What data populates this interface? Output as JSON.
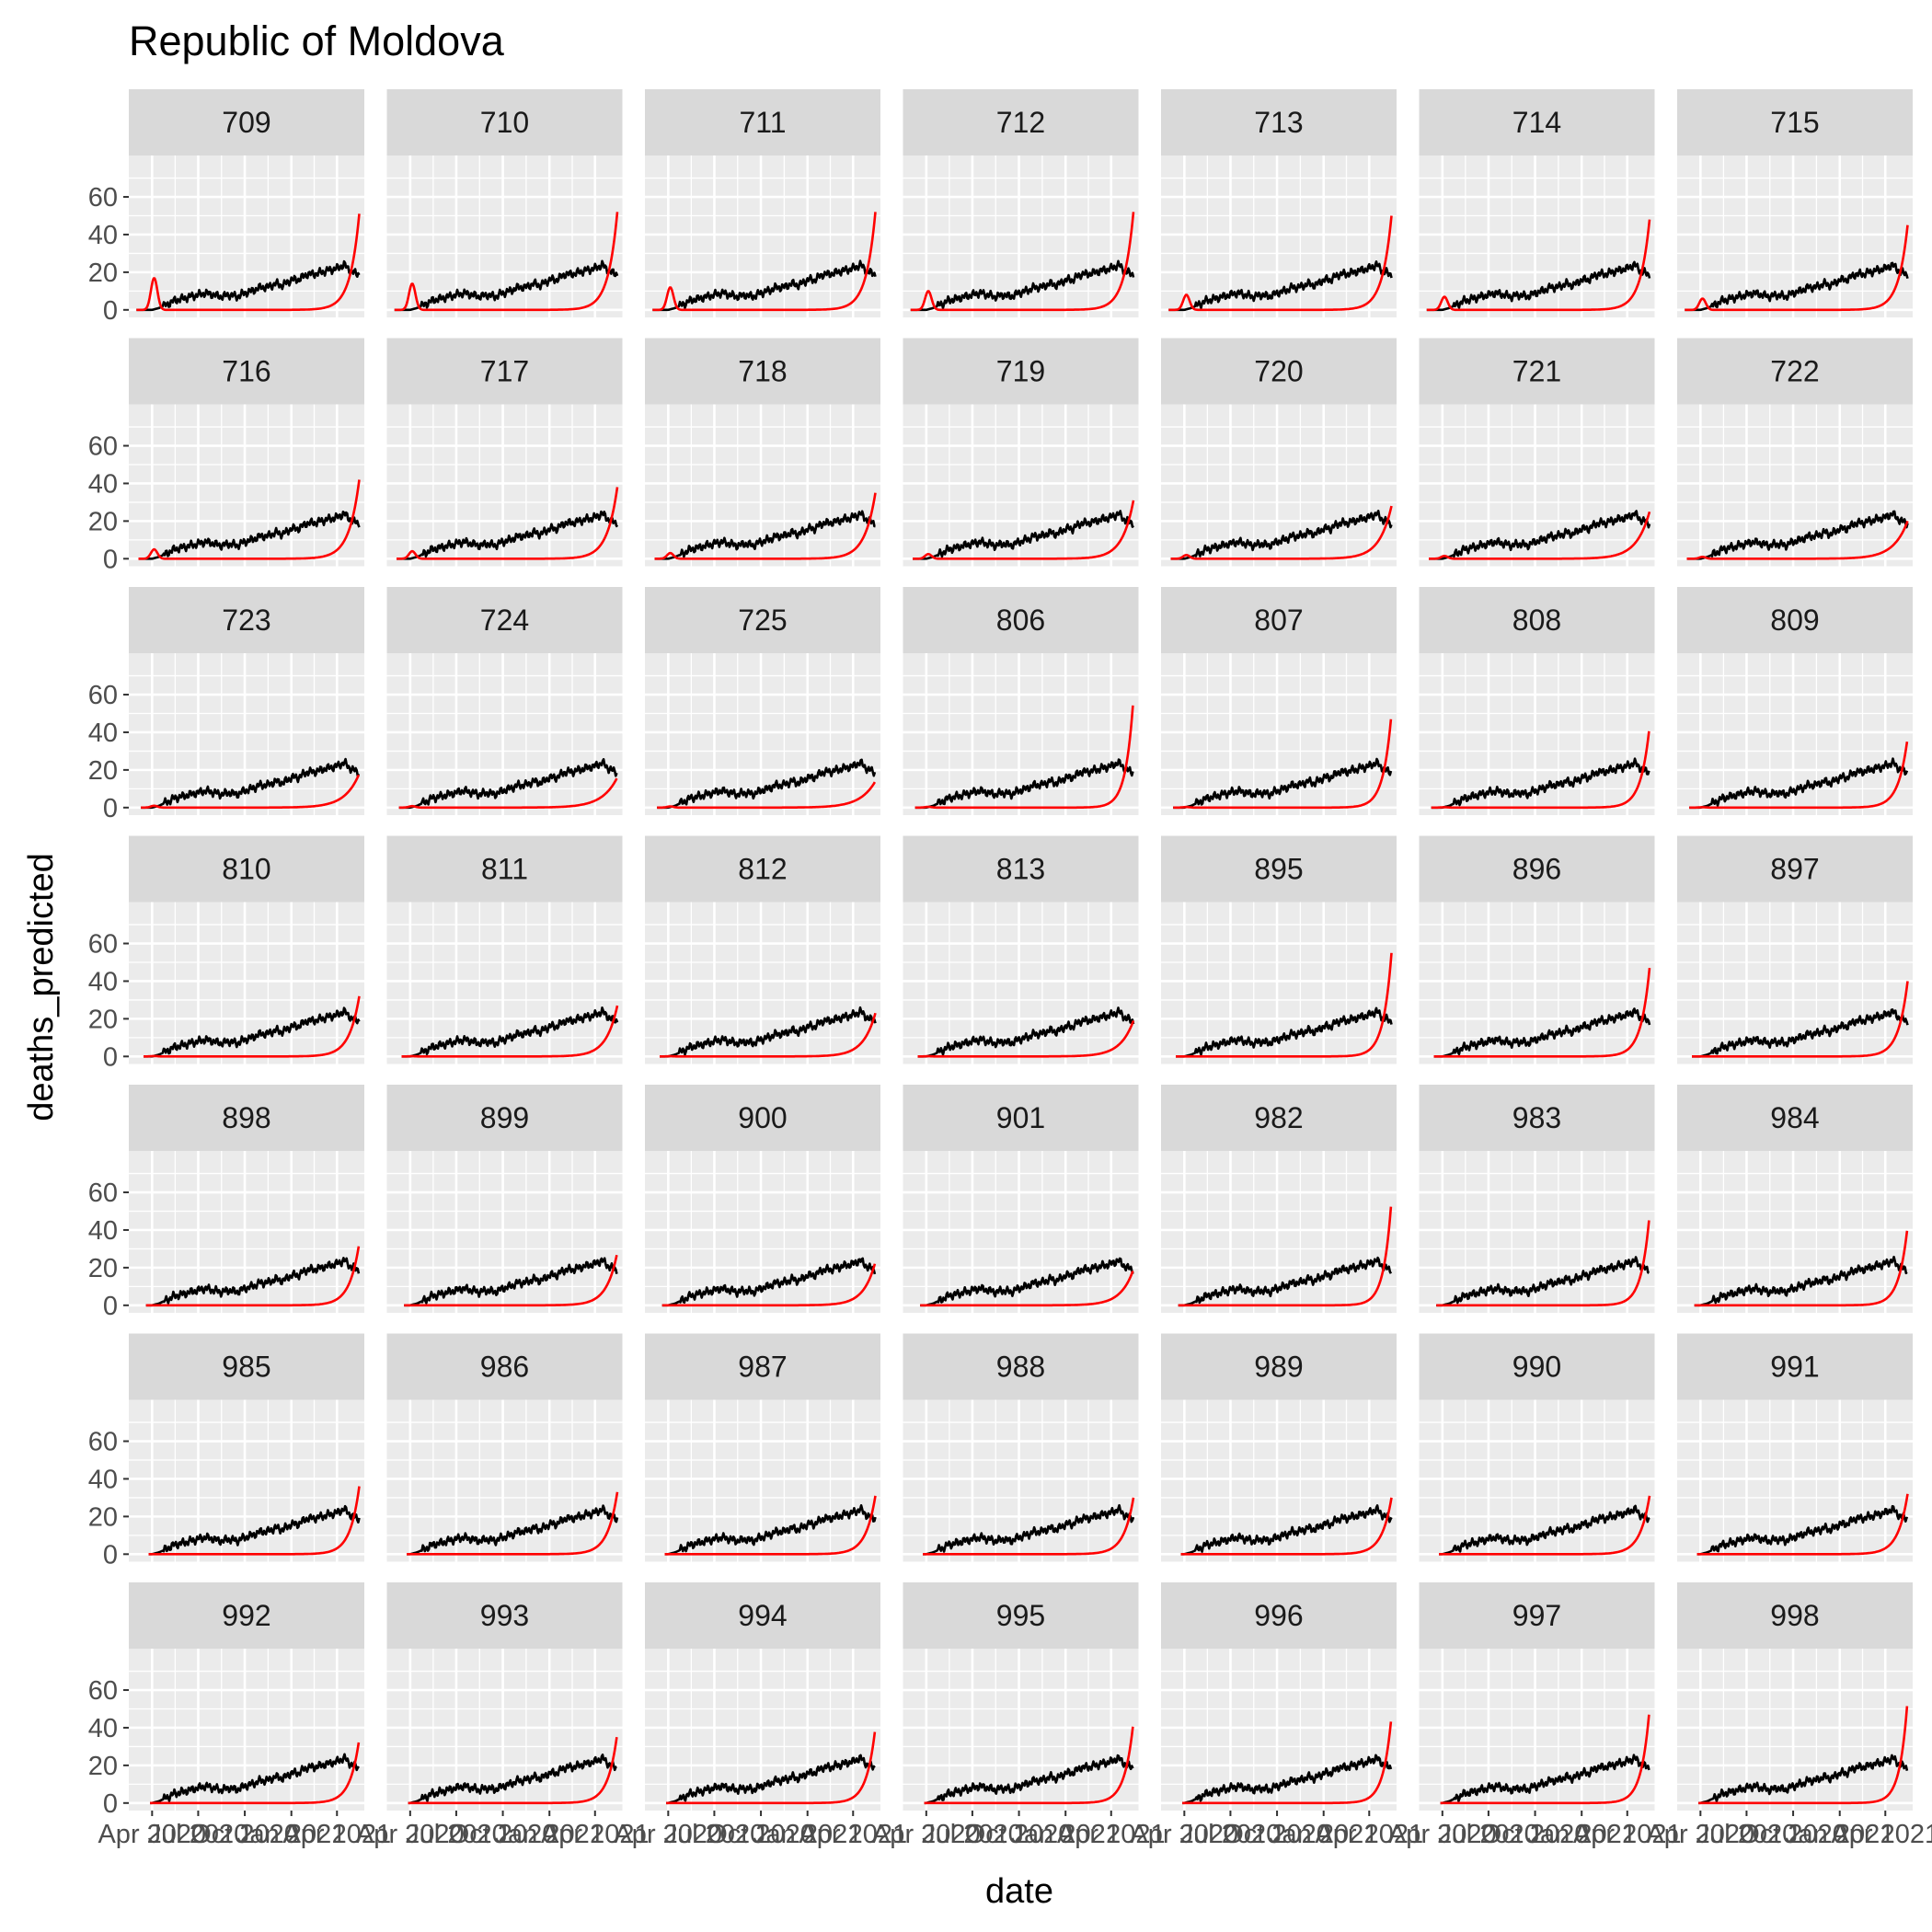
{
  "chart_data": {
    "type": "line",
    "title": "Republic of Moldova",
    "xlabel": "date",
    "ylabel": "deaths_predicted",
    "ylim": [
      -4,
      82
    ],
    "yticks": [
      0,
      20,
      40,
      60
    ],
    "xlim": [
      "2020-02-15",
      "2021-05-25"
    ],
    "xticks": [
      {
        "date": "2020-04-01",
        "label": "Apr 2020"
      },
      {
        "date": "2020-07-01",
        "label": "Jul 2020"
      },
      {
        "date": "2020-10-01",
        "label": "Oct 2020"
      },
      {
        "date": "2021-01-01",
        "label": "Jan 2021"
      },
      {
        "date": "2021-04-01",
        "label": "Apr 2021"
      }
    ],
    "grid": true,
    "facet_layout": {
      "columns": 7,
      "rows": 7
    },
    "observed": {
      "color": "#000000",
      "dates": [
        "2020-03-01",
        "2020-03-15",
        "2020-04-01",
        "2020-04-15",
        "2020-05-01",
        "2020-05-15",
        "2020-06-01",
        "2020-06-15",
        "2020-07-01",
        "2020-07-15",
        "2020-08-01",
        "2020-08-15",
        "2020-09-01",
        "2020-09-15",
        "2020-10-01",
        "2020-10-15",
        "2020-11-01",
        "2020-11-15",
        "2020-12-01",
        "2020-12-15",
        "2021-01-01",
        "2021-01-15",
        "2021-02-01",
        "2021-02-15",
        "2021-03-01",
        "2021-03-15",
        "2021-04-01",
        "2021-04-15",
        "2021-05-01",
        "2021-05-15"
      ],
      "values": [
        0,
        0,
        0,
        1,
        3,
        5,
        6,
        7,
        8,
        9,
        8,
        7,
        8,
        7,
        9,
        10,
        12,
        12,
        14,
        13,
        16,
        16,
        19,
        19,
        20,
        21,
        22,
        24,
        20,
        19
      ]
    },
    "panels": [
      {
        "label": "709",
        "start": "2020-03-01",
        "bump": 17,
        "peak": 51,
        "rise": 18
      },
      {
        "label": "710",
        "start": "2020-03-01",
        "bump": 14,
        "peak": 52,
        "rise": 18
      },
      {
        "label": "711",
        "start": "2020-03-01",
        "bump": 12,
        "peak": 52,
        "rise": 18
      },
      {
        "label": "712",
        "start": "2020-03-01",
        "bump": 10,
        "peak": 52,
        "rise": 18
      },
      {
        "label": "713",
        "start": "2020-03-01",
        "bump": 8,
        "peak": 50,
        "rise": 18
      },
      {
        "label": "714",
        "start": "2020-03-01",
        "bump": 7,
        "peak": 48,
        "rise": 18
      },
      {
        "label": "715",
        "start": "2020-03-01",
        "bump": 6,
        "peak": 45,
        "rise": 18
      },
      {
        "label": "716",
        "start": "2020-03-05",
        "bump": 5,
        "peak": 42,
        "rise": 20
      },
      {
        "label": "717",
        "start": "2020-03-05",
        "bump": 4,
        "peak": 38,
        "rise": 20
      },
      {
        "label": "718",
        "start": "2020-03-05",
        "bump": 3,
        "peak": 35,
        "rise": 21
      },
      {
        "label": "719",
        "start": "2020-03-05",
        "bump": 2.5,
        "peak": 31,
        "rise": 22
      },
      {
        "label": "720",
        "start": "2020-03-05",
        "bump": 2,
        "peak": 28,
        "rise": 24
      },
      {
        "label": "721",
        "start": "2020-03-05",
        "bump": 1.5,
        "peak": 25,
        "rise": 26
      },
      {
        "label": "722",
        "start": "2020-03-05",
        "bump": 1,
        "peak": 20,
        "rise": 28
      },
      {
        "label": "723",
        "start": "2020-03-10",
        "bump": 1,
        "peak": 18,
        "rise": 28
      },
      {
        "label": "724",
        "start": "2020-03-10",
        "bump": 0.8,
        "peak": 16,
        "rise": 30
      },
      {
        "label": "725",
        "start": "2020-03-10",
        "bump": 0.6,
        "peak": 14,
        "rise": 30
      },
      {
        "label": "806",
        "start": "2020-03-10",
        "bump": 0.4,
        "peak": 58,
        "rise": 15
      },
      {
        "label": "807",
        "start": "2020-03-10",
        "bump": 0.3,
        "peak": 50,
        "rise": 16
      },
      {
        "label": "808",
        "start": "2020-03-10",
        "bump": 0.2,
        "peak": 43,
        "rise": 17
      },
      {
        "label": "809",
        "start": "2020-03-10",
        "bump": 0.2,
        "peak": 37,
        "rise": 18
      },
      {
        "label": "810",
        "start": "2020-03-15",
        "bump": 0.2,
        "peak": 32,
        "rise": 20
      },
      {
        "label": "811",
        "start": "2020-03-15",
        "bump": 0.1,
        "peak": 27,
        "rise": 22
      },
      {
        "label": "812",
        "start": "2020-03-15",
        "bump": 0.1,
        "peak": 23,
        "rise": 24
      },
      {
        "label": "813",
        "start": "2020-03-15",
        "bump": 0.1,
        "peak": 19,
        "rise": 26
      },
      {
        "label": "895",
        "start": "2020-03-15",
        "bump": 0,
        "peak": 55,
        "rise": 16
      },
      {
        "label": "896",
        "start": "2020-03-15",
        "bump": 0,
        "peak": 47,
        "rise": 17
      },
      {
        "label": "897",
        "start": "2020-03-15",
        "bump": 0,
        "peak": 40,
        "rise": 18
      },
      {
        "label": "898",
        "start": "2020-03-20",
        "bump": 0,
        "peak": 33,
        "rise": 19
      },
      {
        "label": "899",
        "start": "2020-03-20",
        "bump": 0,
        "peak": 28,
        "rise": 21
      },
      {
        "label": "900",
        "start": "2020-03-20",
        "bump": 0,
        "peak": 23,
        "rise": 23
      },
      {
        "label": "901",
        "start": "2020-03-20",
        "bump": 0,
        "peak": 19,
        "rise": 25
      },
      {
        "label": "982",
        "start": "2020-03-20",
        "bump": 0,
        "peak": 56,
        "rise": 15
      },
      {
        "label": "983",
        "start": "2020-03-20",
        "bump": 0,
        "peak": 48,
        "rise": 16
      },
      {
        "label": "984",
        "start": "2020-03-20",
        "bump": 0,
        "peak": 42,
        "rise": 17
      },
      {
        "label": "985",
        "start": "2020-03-25",
        "bump": 0,
        "peak": 36,
        "rise": 18
      },
      {
        "label": "986",
        "start": "2020-03-25",
        "bump": 0,
        "peak": 33,
        "rise": 19
      },
      {
        "label": "987",
        "start": "2020-03-25",
        "bump": 0,
        "peak": 31,
        "rise": 19
      },
      {
        "label": "988",
        "start": "2020-03-25",
        "bump": 0,
        "peak": 30,
        "rise": 19
      },
      {
        "label": "989",
        "start": "2020-03-25",
        "bump": 0,
        "peak": 30,
        "rise": 19
      },
      {
        "label": "990",
        "start": "2020-03-25",
        "bump": 0,
        "peak": 31,
        "rise": 19
      },
      {
        "label": "991",
        "start": "2020-03-25",
        "bump": 0,
        "peak": 32,
        "rise": 19
      },
      {
        "label": "992",
        "start": "2020-03-28",
        "bump": 0,
        "peak": 34,
        "rise": 18
      },
      {
        "label": "993",
        "start": "2020-03-28",
        "bump": 0,
        "peak": 37,
        "rise": 18
      },
      {
        "label": "994",
        "start": "2020-03-28",
        "bump": 0,
        "peak": 40,
        "rise": 17
      },
      {
        "label": "995",
        "start": "2020-03-28",
        "bump": 0,
        "peak": 43,
        "rise": 17
      },
      {
        "label": "996",
        "start": "2020-03-28",
        "bump": 0,
        "peak": 46,
        "rise": 16
      },
      {
        "label": "997",
        "start": "2020-03-28",
        "bump": 0,
        "peak": 50,
        "rise": 16
      },
      {
        "label": "998",
        "start": "2020-03-28",
        "bump": 0,
        "peak": 55,
        "rise": 15
      }
    ],
    "predicted_color": "#ff0000"
  }
}
